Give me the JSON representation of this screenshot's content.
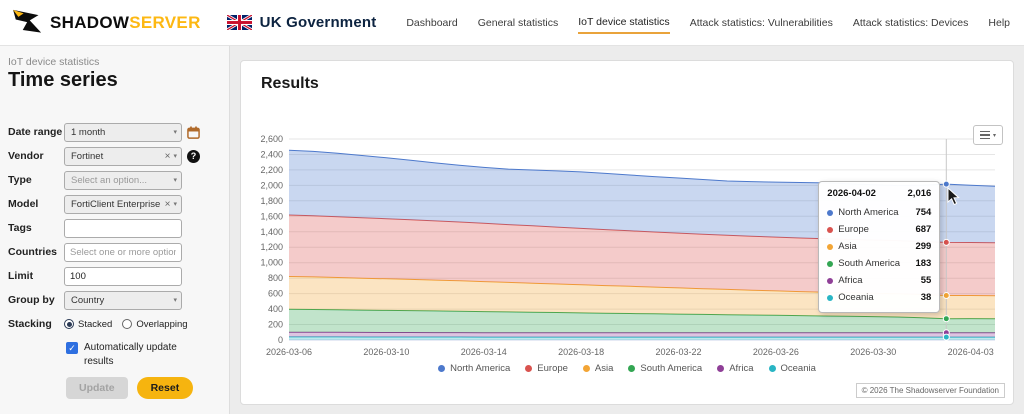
{
  "header": {
    "brand": {
      "shadow": "SHADOW",
      "server": "SERVER"
    },
    "gov_label": "UK Government",
    "nav": [
      {
        "label": "Dashboard",
        "active": false
      },
      {
        "label": "General statistics",
        "active": false
      },
      {
        "label": "IoT device statistics",
        "active": true
      },
      {
        "label": "Attack statistics: Vulnerabilities",
        "active": false
      },
      {
        "label": "Attack statistics: Devices",
        "active": false
      },
      {
        "label": "Help",
        "active": false
      }
    ]
  },
  "sidebar": {
    "section": "IoT device statistics",
    "title": "Time series",
    "date_range": {
      "label": "Date range",
      "value": "1 month"
    },
    "vendor": {
      "label": "Vendor",
      "value": "Fortinet",
      "clear": "×",
      "help": "?"
    },
    "type": {
      "label": "Type",
      "placeholder": "Select an option..."
    },
    "model": {
      "label": "Model",
      "value": "FortiClient Enterprise",
      "clear": "×"
    },
    "tags": {
      "label": "Tags",
      "value": ""
    },
    "countries": {
      "label": "Countries",
      "placeholder": "Select one or more options..."
    },
    "limit": {
      "label": "Limit",
      "value": "100"
    },
    "group_by": {
      "label": "Group by",
      "value": "Country"
    },
    "stacking": {
      "label": "Stacking",
      "options": [
        {
          "label": "Stacked",
          "selected": true
        },
        {
          "label": "Overlapping",
          "selected": false
        }
      ]
    },
    "auto_update": {
      "label": "Automatically update results",
      "checked": true
    },
    "update_button": "Update",
    "reset_button": "Reset"
  },
  "results": {
    "title": "Results",
    "copyright": "© 2026 The Shadowserver Foundation"
  },
  "chart_data": {
    "type": "area",
    "stacked": true,
    "title": "",
    "xlabel": "",
    "ylabel": "",
    "ylim": [
      0,
      2600
    ],
    "ytick_step": 200,
    "grid": true,
    "legend_position": "bottom",
    "dates": [
      "2026-03-06",
      "2026-03-07",
      "2026-03-08",
      "2026-03-09",
      "2026-03-10",
      "2026-03-11",
      "2026-03-12",
      "2026-03-13",
      "2026-03-14",
      "2026-03-15",
      "2026-03-16",
      "2026-03-17",
      "2026-03-18",
      "2026-03-19",
      "2026-03-20",
      "2026-03-21",
      "2026-03-22",
      "2026-03-23",
      "2026-03-24",
      "2026-03-25",
      "2026-03-26",
      "2026-03-27",
      "2026-03-28",
      "2026-03-29",
      "2026-03-30",
      "2026-03-31",
      "2026-04-01",
      "2026-04-02",
      "2026-04-03",
      "2026-04-04"
    ],
    "xtick_labels": [
      "2026-03-06",
      "2026-03-10",
      "2026-03-14",
      "2026-03-18",
      "2026-03-22",
      "2026-03-26",
      "2026-03-30",
      "2026-04-03"
    ],
    "series": [
      {
        "name": "North America",
        "color": "#4d79cc",
        "values": [
          838,
          832,
          820,
          804,
          788,
          768,
          750,
          735,
          724,
          718,
          722,
          727,
          731,
          727,
          722,
          717,
          712,
          707,
          702,
          707,
          712,
          717,
          722,
          719,
          715,
          711,
          728,
          754,
          742,
          733
        ]
      },
      {
        "name": "Europe",
        "color": "#d9534f",
        "values": [
          796,
          792,
          787,
          782,
          777,
          772,
          766,
          760,
          754,
          748,
          742,
          736,
          730,
          724,
          718,
          713,
          709,
          705,
          701,
          698,
          696,
          694,
          692,
          690,
          689,
          688,
          687,
          687,
          686,
          684
        ]
      },
      {
        "name": "Asia",
        "color": "#f3a535",
        "values": [
          424,
          421,
          417,
          413,
          409,
          404,
          399,
          393,
          387,
          381,
          375,
          369,
          363,
          357,
          351,
          345,
          339,
          333,
          327,
          321,
          316,
          311,
          307,
          304,
          302,
          300,
          299,
          299,
          298,
          297
        ]
      },
      {
        "name": "South America",
        "color": "#33a653",
        "values": [
          297,
          295,
          292,
          289,
          286,
          283,
          280,
          277,
          274,
          270,
          266,
          262,
          258,
          254,
          250,
          246,
          242,
          238,
          234,
          230,
          226,
          222,
          218,
          214,
          210,
          205,
          195,
          183,
          184,
          183
        ]
      },
      {
        "name": "Africa",
        "color": "#8f3f97",
        "values": [
          60,
          60,
          59,
          59,
          58,
          58,
          57,
          57,
          56,
          56,
          56,
          56,
          55,
          55,
          55,
          55,
          55,
          55,
          55,
          55,
          55,
          55,
          55,
          55,
          55,
          55,
          55,
          55,
          55,
          55
        ]
      },
      {
        "name": "Oceania",
        "color": "#29b5c4",
        "values": [
          40,
          40,
          40,
          39,
          39,
          39,
          39,
          39,
          38,
          38,
          38,
          38,
          38,
          38,
          38,
          38,
          38,
          38,
          38,
          38,
          38,
          38,
          38,
          38,
          38,
          38,
          38,
          38,
          38,
          38
        ]
      }
    ],
    "tooltip": {
      "date": "2026-04-02",
      "total": "2,016",
      "hover_index": 27,
      "rows": [
        {
          "name": "North America",
          "value": 754
        },
        {
          "name": "Europe",
          "value": 687
        },
        {
          "name": "Asia",
          "value": 299
        },
        {
          "name": "South America",
          "value": 183
        },
        {
          "name": "Africa",
          "value": 55
        },
        {
          "name": "Oceania",
          "value": 38
        }
      ]
    }
  }
}
